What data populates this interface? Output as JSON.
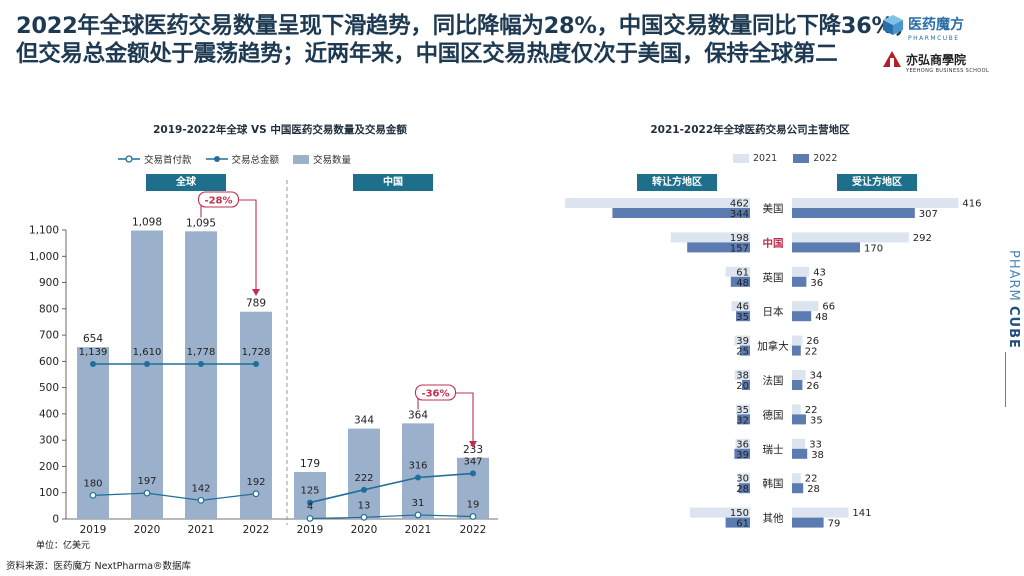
{
  "headline": "2022年全球医药交易数量呈现下滑趋势，同比降幅为28%，中国交易数量同比下降36%，但交易总金额处于震荡趋势；近两年来，中国区交易热度仅次于美国，保持全球第二",
  "logo": {
    "brand": "医药魔方",
    "brand_sub": "PHARMCUBE",
    "school": "亦弘商學院",
    "school_sub": "YEEHONG BUSINESS SCHOOL",
    "side_text_a": "PHARM",
    "side_text_b": "CUBE"
  },
  "footer": {
    "source": "资料来源：医药魔方 NextPharma®数据库",
    "unit": "单位：亿美元"
  },
  "colors": {
    "bar": "#9bb0cb",
    "line": "#1f6f9a",
    "banner": "#1d6f8b",
    "region_2021": "#dbe4ef",
    "region_2022": "#5c7bb0",
    "arrow": "#c0304d",
    "china_label": "#c0304d"
  },
  "chart_data": [
    {
      "type": "bar",
      "title": "2019-2022年全球 VS 中国医药交易数量及交易金额",
      "legend": [
        "交易首付款",
        "交易总金额",
        "交易数量"
      ],
      "ylim": [
        0,
        1100
      ],
      "yticks": [
        "0",
        "100",
        "200",
        "300",
        "400",
        "500",
        "600",
        "700",
        "800",
        "900",
        "1,000",
        "1,100"
      ],
      "groups": [
        {
          "label": "全球",
          "categories": [
            "2019",
            "2020",
            "2021",
            "2022"
          ],
          "count": [
            654,
            1098,
            1095,
            789
          ],
          "count_labels": [
            "654",
            "1,098",
            "1,095",
            "789"
          ],
          "total_amount": [
            1139,
            1610,
            1778,
            1728
          ],
          "total_labels": [
            "1,139",
            "1,610",
            "1,778",
            "1,728"
          ],
          "upfront": [
            180,
            197,
            142,
            192
          ],
          "upfront_labels": [
            "180",
            "197",
            "142",
            "192"
          ],
          "change": "-28%"
        },
        {
          "label": "中国",
          "categories": [
            "2019",
            "2020",
            "2021",
            "2022"
          ],
          "count": [
            179,
            344,
            364,
            233
          ],
          "count_labels": [
            "179",
            "344",
            "364",
            "233"
          ],
          "total_amount": [
            125,
            222,
            316,
            347
          ],
          "total_labels": [
            "125",
            "222",
            "316",
            "347"
          ],
          "upfront": [
            4,
            13,
            31,
            19
          ],
          "upfront_labels": [
            "4",
            "13",
            "31",
            "19"
          ],
          "change": "-36%"
        }
      ]
    },
    {
      "type": "bar",
      "title": "2021-2022年全球医药交易公司主营地区",
      "legend": [
        "2021",
        "2022"
      ],
      "left_header": "转让方地区",
      "right_header": "受让方地区",
      "regions": [
        "美国",
        "中国",
        "英国",
        "日本",
        "加拿大",
        "法国",
        "德国",
        "瑞士",
        "韩国",
        "其他"
      ],
      "licensor_2021": [
        462,
        198,
        61,
        46,
        39,
        38,
        35,
        36,
        30,
        150
      ],
      "licensor_2022": [
        344,
        157,
        48,
        35,
        25,
        20,
        32,
        39,
        28,
        61
      ],
      "licensee_2021": [
        416,
        292,
        43,
        66,
        26,
        34,
        22,
        33,
        22,
        141
      ],
      "licensee_2022": [
        307,
        170,
        36,
        48,
        22,
        26,
        35,
        38,
        28,
        79
      ]
    }
  ]
}
